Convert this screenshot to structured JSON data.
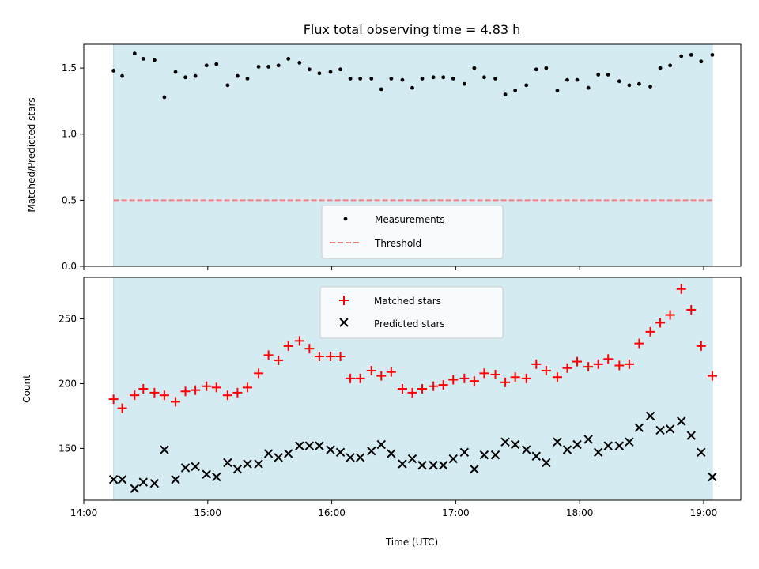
{
  "chart_data": [
    {
      "type": "scatter",
      "title": "Flux total observing time = 4.83 h",
      "xlabel": "",
      "ylabel": "Matched/Predicted stars",
      "x_unit": "hours (UTC clock time)",
      "xlim": [
        14.0,
        19.3
      ],
      "ylim": [
        0.0,
        1.68
      ],
      "yticks": [
        0.0,
        0.5,
        1.0,
        1.5
      ],
      "ytick_labels": [
        "0.0",
        "0.5",
        "1.0",
        "1.5"
      ],
      "observing_window": [
        14.24,
        19.07
      ],
      "observing_window_color": "#d4ebf2",
      "legend_placement": "lower center",
      "series": [
        {
          "name": "Measurements",
          "marker": "dot",
          "color": "#000000",
          "x": [
            14.24,
            14.31,
            14.41,
            14.48,
            14.57,
            14.65,
            14.74,
            14.82,
            14.9,
            14.99,
            15.07,
            15.16,
            15.24,
            15.32,
            15.41,
            15.49,
            15.57,
            15.65,
            15.74,
            15.82,
            15.9,
            15.99,
            16.07,
            16.15,
            16.23,
            16.32,
            16.4,
            16.48,
            16.57,
            16.65,
            16.73,
            16.82,
            16.9,
            16.98,
            17.07,
            17.15,
            17.23,
            17.32,
            17.4,
            17.48,
            17.57,
            17.65,
            17.73,
            17.82,
            17.9,
            17.98,
            18.07,
            18.15,
            18.23,
            18.32,
            18.4,
            18.48,
            18.57,
            18.65,
            18.73,
            18.82,
            18.9,
            18.98,
            19.07
          ],
          "values": [
            1.48,
            1.44,
            1.61,
            1.57,
            1.56,
            1.28,
            1.47,
            1.43,
            1.44,
            1.52,
            1.53,
            1.37,
            1.44,
            1.42,
            1.51,
            1.51,
            1.52,
            1.57,
            1.54,
            1.49,
            1.46,
            1.47,
            1.49,
            1.42,
            1.42,
            1.42,
            1.34,
            1.42,
            1.41,
            1.35,
            1.42,
            1.43,
            1.43,
            1.42,
            1.38,
            1.5,
            1.43,
            1.42,
            1.3,
            1.33,
            1.37,
            1.49,
            1.5,
            1.33,
            1.41,
            1.41,
            1.35,
            1.45,
            1.45,
            1.4,
            1.37,
            1.38,
            1.36,
            1.5,
            1.52,
            1.59,
            1.6,
            1.55,
            1.6
          ]
        },
        {
          "name": "Threshold",
          "marker": "dashed-line",
          "color": "#f08080",
          "x": [
            14.24,
            19.07
          ],
          "values": [
            0.5,
            0.5
          ]
        }
      ]
    },
    {
      "type": "scatter",
      "title": "",
      "xlabel": "Time (UTC)",
      "ylabel": "Count",
      "x_unit": "hours (UTC clock time)",
      "xlim": [
        14.0,
        19.3
      ],
      "ylim": [
        110,
        282
      ],
      "xticks": [
        14,
        15,
        16,
        17,
        18,
        19
      ],
      "xtick_labels": [
        "14:00",
        "15:00",
        "16:00",
        "17:00",
        "18:00",
        "19:00"
      ],
      "yticks": [
        150,
        200,
        250
      ],
      "ytick_labels": [
        "150",
        "200",
        "250"
      ],
      "observing_window": [
        14.24,
        19.07
      ],
      "observing_window_color": "#d4ebf2",
      "legend_placement": "upper center",
      "series": [
        {
          "name": "Matched stars",
          "marker": "plus",
          "color": "#ff0000",
          "x": [
            14.24,
            14.31,
            14.41,
            14.48,
            14.57,
            14.65,
            14.74,
            14.82,
            14.9,
            14.99,
            15.07,
            15.16,
            15.24,
            15.32,
            15.41,
            15.49,
            15.57,
            15.65,
            15.74,
            15.82,
            15.9,
            15.99,
            16.07,
            16.15,
            16.23,
            16.32,
            16.4,
            16.48,
            16.57,
            16.65,
            16.73,
            16.82,
            16.9,
            16.98,
            17.07,
            17.15,
            17.23,
            17.32,
            17.4,
            17.48,
            17.57,
            17.65,
            17.73,
            17.82,
            17.9,
            17.98,
            18.07,
            18.15,
            18.23,
            18.32,
            18.4,
            18.48,
            18.57,
            18.65,
            18.73,
            18.82,
            18.9,
            18.98,
            19.07
          ],
          "values": [
            188,
            181,
            191,
            196,
            193,
            191,
            186,
            194,
            195,
            198,
            197,
            191,
            193,
            197,
            208,
            222,
            218,
            229,
            233,
            227,
            221,
            221,
            221,
            204,
            204,
            210,
            206,
            209,
            196,
            193,
            196,
            198,
            199,
            203,
            204,
            202,
            208,
            207,
            201,
            205,
            204,
            215,
            210,
            205,
            212,
            217,
            213,
            215,
            219,
            214,
            215,
            231,
            240,
            247,
            253,
            273,
            257,
            229,
            206
          ]
        },
        {
          "name": "Predicted stars",
          "marker": "x",
          "color": "#000000",
          "x": [
            14.24,
            14.31,
            14.41,
            14.48,
            14.57,
            14.65,
            14.74,
            14.82,
            14.9,
            14.99,
            15.07,
            15.16,
            15.24,
            15.32,
            15.41,
            15.49,
            15.57,
            15.65,
            15.74,
            15.82,
            15.9,
            15.99,
            16.07,
            16.15,
            16.23,
            16.32,
            16.4,
            16.48,
            16.57,
            16.65,
            16.73,
            16.82,
            16.9,
            16.98,
            17.07,
            17.15,
            17.23,
            17.32,
            17.4,
            17.48,
            17.57,
            17.65,
            17.73,
            17.82,
            17.9,
            17.98,
            18.07,
            18.15,
            18.23,
            18.32,
            18.4,
            18.48,
            18.57,
            18.65,
            18.73,
            18.82,
            18.9,
            18.98,
            19.07
          ],
          "values": [
            126,
            126,
            119,
            124,
            123,
            149,
            126,
            135,
            136,
            130,
            128,
            139,
            134,
            138,
            138,
            146,
            143,
            146,
            152,
            152,
            152,
            149,
            147,
            143,
            143,
            148,
            153,
            146,
            138,
            142,
            137,
            137,
            137,
            142,
            147,
            134,
            145,
            145,
            155,
            153,
            149,
            144,
            139,
            155,
            149,
            153,
            157,
            147,
            152,
            152,
            155,
            166,
            175,
            164,
            165,
            171,
            160,
            147,
            128
          ]
        }
      ]
    }
  ]
}
